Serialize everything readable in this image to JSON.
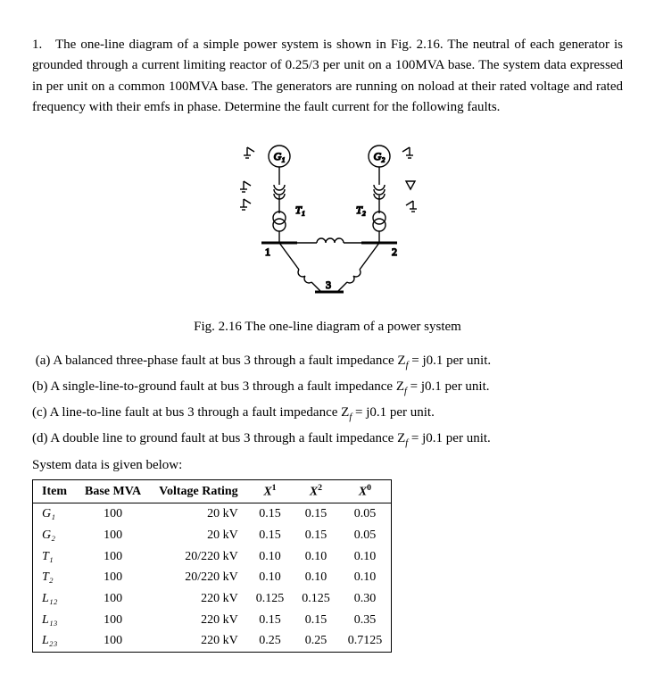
{
  "question": {
    "number": "1.",
    "intro": "The one-line diagram of a simple power system is shown in Fig. 2.16. The neutral of each generator is grounded through a current limiting reactor of 0.25/3 per unit on a 100MVA base. The system data expressed in per unit on a common 100MVA base. The generators are running on noload at their rated voltage and rated frequency with their emfs in phase. Determine the fault current for the following faults."
  },
  "figure": {
    "caption": "Fig. 2.16 The one-line diagram of a power system",
    "labels": {
      "g1": "G₁",
      "g2": "G₂",
      "t1": "T₁",
      "t2": "T₂",
      "b1": "1",
      "b2": "2",
      "b3": "3"
    },
    "stroke": "#000000",
    "fill": "none"
  },
  "subparts": {
    "a": "(a) A balanced three-phase fault at bus 3 through a fault impedance Z",
    "a_sub": "f",
    "a_tail": " = j0.1 per unit.",
    "b": "(b) A single-line-to-ground fault at bus 3 through a fault impedance Z",
    "c": "(c) A line-to-line fault at bus 3 through a fault impedance Z",
    "d": "(d) A double line to ground fault at bus 3 through a fault impedance Z",
    "tail_label": "System data is given below:"
  },
  "table": {
    "headers": [
      "Item",
      "Base MVA",
      "Voltage Rating",
      "X¹",
      "X²",
      "X⁰"
    ],
    "rows": [
      {
        "item": "G₁",
        "mva": "100",
        "vr": "20 kV",
        "x1": "0.15",
        "x2": "0.15",
        "x0": "0.05"
      },
      {
        "item": "G₂",
        "mva": "100",
        "vr": "20 kV",
        "x1": "0.15",
        "x2": "0.15",
        "x0": "0.05"
      },
      {
        "item": "T₁",
        "mva": "100",
        "vr": "20/220 kV",
        "x1": "0.10",
        "x2": "0.10",
        "x0": "0.10"
      },
      {
        "item": "T₂",
        "mva": "100",
        "vr": "20/220 kV",
        "x1": "0.10",
        "x2": "0.10",
        "x0": "0.10"
      },
      {
        "item": "L₁₂",
        "mva": "100",
        "vr": "220 kV",
        "x1": "0.125",
        "x2": "0.125",
        "x0": "0.30"
      },
      {
        "item": "L₁₃",
        "mva": "100",
        "vr": "220 kV",
        "x1": "0.15",
        "x2": "0.15",
        "x0": "0.35"
      },
      {
        "item": "L₂₃",
        "mva": "100",
        "vr": "220 kV",
        "x1": "0.25",
        "x2": "0.25",
        "x0": "0.7125"
      }
    ]
  }
}
